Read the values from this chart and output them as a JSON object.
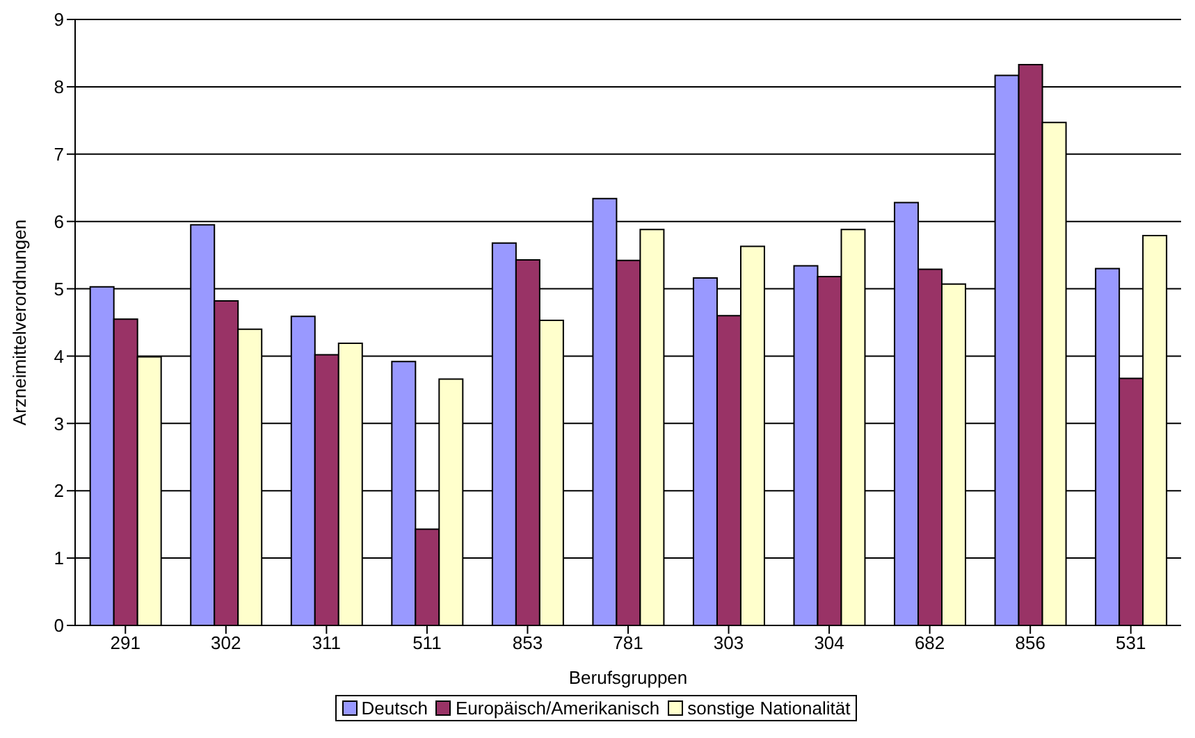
{
  "chart_data": {
    "type": "bar",
    "xlabel": "Berufsgruppen",
    "ylabel": "Arzneimittelverordnungen",
    "categories": [
      "291",
      "302",
      "311",
      "511",
      "853",
      "781",
      "303",
      "304",
      "682",
      "856",
      "531"
    ],
    "series": [
      {
        "name": "Deutsch",
        "color": "#9999ff",
        "values": [
          5.03,
          5.95,
          4.59,
          3.92,
          5.68,
          6.34,
          5.16,
          5.34,
          6.28,
          8.17,
          5.3
        ]
      },
      {
        "name": "Europäisch/Amerikanisch",
        "color": "#993366",
        "values": [
          4.55,
          4.82,
          4.02,
          1.43,
          5.43,
          5.42,
          4.6,
          5.18,
          5.29,
          8.33,
          3.67
        ]
      },
      {
        "name": "sonstige Nationalität",
        "color": "#ffffcc",
        "values": [
          3.99,
          4.4,
          4.19,
          3.66,
          4.53,
          5.88,
          5.63,
          5.88,
          5.07,
          7.47,
          5.79
        ]
      }
    ],
    "ylim": [
      0,
      9
    ],
    "yticks": [
      0,
      1,
      2,
      3,
      4,
      5,
      6,
      7,
      8,
      9
    ],
    "grid": "y",
    "legend": "bottom"
  }
}
